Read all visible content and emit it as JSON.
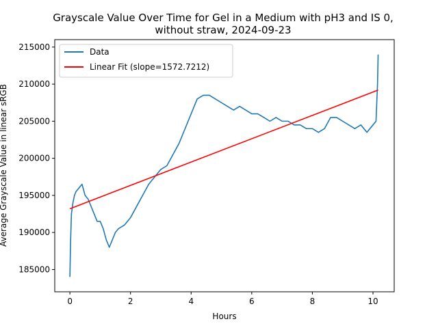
{
  "chart_data": {
    "type": "line",
    "title_line1": "Grayscale Value Over Time for Gel in a Medium with pH3 and IS 0,",
    "title_line2": "without straw, 2024-09-23",
    "xlabel": "Hours",
    "ylabel": "Average Grayscale Value in linear sRGB",
    "xlim": [
      -0.5,
      10.7
    ],
    "ylim": [
      182000,
      216000
    ],
    "xticks": [
      0,
      2,
      4,
      6,
      8,
      10
    ],
    "yticks": [
      185000,
      190000,
      195000,
      200000,
      205000,
      210000,
      215000
    ],
    "xtick_labels": [
      "0",
      "2",
      "4",
      "6",
      "8",
      "10"
    ],
    "ytick_labels": [
      "185000",
      "190000",
      "195000",
      "200000",
      "205000",
      "210000",
      "215000"
    ],
    "legend_position": "upper-left",
    "series": [
      {
        "name": "Data",
        "color": "#1f77b4",
        "x": [
          0,
          0.02,
          0.05,
          0.1,
          0.15,
          0.2,
          0.3,
          0.4,
          0.5,
          0.6,
          0.7,
          0.8,
          0.9,
          1.0,
          1.1,
          1.2,
          1.3,
          1.4,
          1.5,
          1.6,
          1.8,
          2.0,
          2.2,
          2.4,
          2.6,
          2.8,
          3.0,
          3.2,
          3.4,
          3.6,
          3.8,
          4.0,
          4.2,
          4.4,
          4.6,
          4.8,
          5.0,
          5.2,
          5.4,
          5.6,
          5.8,
          6.0,
          6.2,
          6.4,
          6.6,
          6.8,
          7.0,
          7.2,
          7.4,
          7.6,
          7.8,
          8.0,
          8.2,
          8.4,
          8.6,
          8.8,
          9.0,
          9.2,
          9.4,
          9.6,
          9.8,
          10.0,
          10.1,
          10.15,
          10.17
        ],
        "y": [
          184000,
          188500,
          192500,
          194000,
          195000,
          195500,
          196000,
          196500,
          195000,
          194500,
          193500,
          192500,
          191500,
          191500,
          190500,
          189000,
          188000,
          189000,
          190000,
          190500,
          191000,
          192000,
          193500,
          195000,
          196500,
          197500,
          198500,
          199000,
          200500,
          202000,
          204000,
          206000,
          208000,
          208500,
          208500,
          208000,
          207500,
          207000,
          206500,
          207000,
          206500,
          206000,
          206000,
          205500,
          205000,
          205500,
          205000,
          205000,
          204500,
          204500,
          204000,
          204000,
          203500,
          204000,
          205500,
          205500,
          205000,
          204500,
          204000,
          204500,
          203500,
          204500,
          205000,
          210000,
          214000
        ]
      },
      {
        "name": "Linear Fit (slope=1572.7212)",
        "color": "#ff0000",
        "x": [
          0,
          10.17
        ],
        "y": [
          193200,
          209200
        ]
      }
    ]
  }
}
